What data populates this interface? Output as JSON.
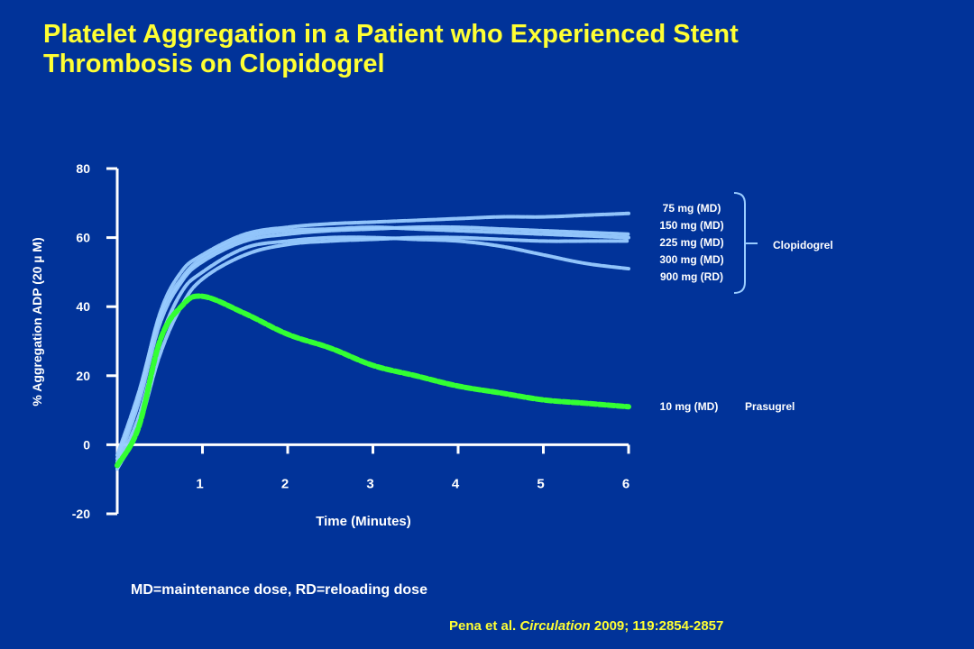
{
  "title": {
    "line1": "Platelet Aggregation in a Patient who Experienced Stent",
    "line2": "Thrombosis on Clopidogrel"
  },
  "chart_data": {
    "type": "line",
    "xlabel": "Time (Minutes)",
    "ylabel": "% Aggregation ADP (20 µ M)",
    "xlim": [
      0,
      6
    ],
    "ylim": [
      -20,
      80
    ],
    "x_ticks": [
      "1",
      "2",
      "3",
      "4",
      "5",
      "6"
    ],
    "y_ticks": [
      "80",
      "60",
      "40",
      "20",
      "0",
      "-20"
    ],
    "x": [
      0,
      0.25,
      0.5,
      0.75,
      1,
      1.5,
      2,
      2.5,
      3,
      3.5,
      4,
      4.5,
      5,
      5.5,
      6
    ],
    "series": [
      {
        "name": "75 mg (MD)",
        "group": "Clopidogrel",
        "values": [
          -4,
          14,
          38,
          50,
          55,
          61,
          63,
          64,
          64.5,
          65,
          65.5,
          66,
          66,
          66.5,
          67
        ]
      },
      {
        "name": "150 mg (MD)",
        "group": "Clopidogrel",
        "values": [
          -5,
          12,
          35,
          47,
          53,
          59,
          61,
          62,
          62.5,
          63,
          63,
          62.5,
          62,
          61.5,
          61
        ]
      },
      {
        "name": "225 mg (MD)",
        "group": "Clopidogrel",
        "values": [
          -3,
          15,
          37,
          48,
          54,
          60,
          62,
          62.5,
          63,
          62.5,
          62,
          61.5,
          61,
          60.5,
          60
        ]
      },
      {
        "name": "300 mg (MD)",
        "group": "Clopidogrel",
        "values": [
          -6,
          8,
          30,
          44,
          50,
          57,
          59,
          60,
          60,
          59.5,
          59,
          57.5,
          55,
          52.5,
          51
        ]
      },
      {
        "name": "900 mg (RD)",
        "group": "Clopidogrel",
        "values": [
          -7,
          5,
          26,
          40,
          48,
          55,
          58,
          59,
          59.5,
          60,
          60,
          59.5,
          59,
          59,
          59
        ]
      },
      {
        "name": "10 mg (MD)",
        "group": "Prasugrel",
        "values": [
          -6,
          5,
          30,
          40,
          43,
          38,
          32,
          28,
          23,
          20,
          17,
          15,
          13,
          12,
          11
        ]
      }
    ],
    "colors": {
      "clopidogrel": "#99CCFF",
      "prasugrel": "#33FF33",
      "axis": "#FFFFFF",
      "bracket": "#99CCFF"
    },
    "group_labels": {
      "clopidogrel": "Clopidogrel",
      "prasugrel": "Prasugrel"
    }
  },
  "footnote": "MD=maintenance dose, RD=reloading dose",
  "citation": {
    "authors": "Pena et al. ",
    "journal": "Circulation",
    "details": " 2009; 119:2854-2857"
  }
}
